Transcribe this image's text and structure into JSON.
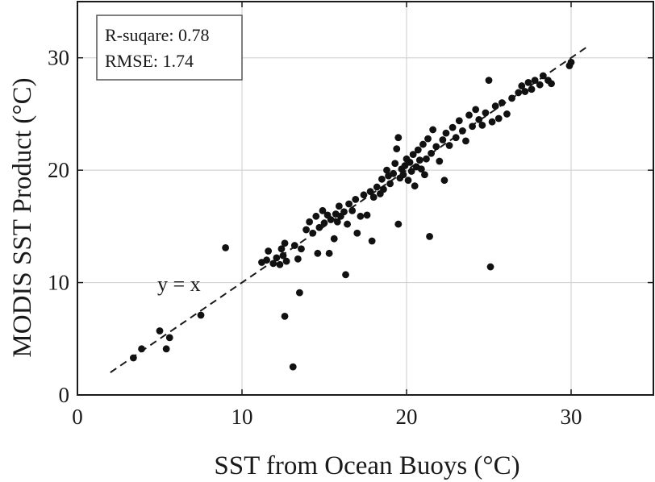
{
  "chart_data": {
    "type": "scatter",
    "xlabel": "SST from Ocean Buoys (°C)",
    "ylabel": "MODIS SST Product (°C)",
    "xlim": [
      0,
      35
    ],
    "ylim": [
      0,
      35
    ],
    "x_ticks": [
      0,
      10,
      20,
      30
    ],
    "y_ticks": [
      0,
      10,
      20,
      30
    ],
    "grid": true,
    "stats": {
      "r_squared_label": "R-suqare: 0.78",
      "rmse_label": "RMSE: 1.74"
    },
    "reference_line": {
      "label": "y = x",
      "x": [
        2,
        31
      ],
      "y": [
        2,
        31
      ]
    },
    "series": [
      {
        "points": [
          [
            3.4,
            3.3
          ],
          [
            3.9,
            4.1
          ],
          [
            5.0,
            5.7
          ],
          [
            5.4,
            4.1
          ],
          [
            5.6,
            5.1
          ],
          [
            7.5,
            7.1
          ],
          [
            9.0,
            13.1
          ],
          [
            11.2,
            11.8
          ],
          [
            11.5,
            12.0
          ],
          [
            11.6,
            12.8
          ],
          [
            11.9,
            11.7
          ],
          [
            12.1,
            12.2
          ],
          [
            12.3,
            11.6
          ],
          [
            12.4,
            13.0
          ],
          [
            12.5,
            12.4
          ],
          [
            12.6,
            13.5
          ],
          [
            12.7,
            11.9
          ],
          [
            12.6,
            7.0
          ],
          [
            13.1,
            2.5
          ],
          [
            13.2,
            13.3
          ],
          [
            13.4,
            12.1
          ],
          [
            13.5,
            9.1
          ],
          [
            13.6,
            13.0
          ],
          [
            13.9,
            14.7
          ],
          [
            14.1,
            15.4
          ],
          [
            14.3,
            14.4
          ],
          [
            14.5,
            15.9
          ],
          [
            14.6,
            12.6
          ],
          [
            14.7,
            14.9
          ],
          [
            14.9,
            16.4
          ],
          [
            15.0,
            15.3
          ],
          [
            15.2,
            16.0
          ],
          [
            15.3,
            12.6
          ],
          [
            15.4,
            15.6
          ],
          [
            15.6,
            13.9
          ],
          [
            15.7,
            16.1
          ],
          [
            15.8,
            15.4
          ],
          [
            15.9,
            16.8
          ],
          [
            16.0,
            15.9
          ],
          [
            16.2,
            16.3
          ],
          [
            16.3,
            10.7
          ],
          [
            16.4,
            15.2
          ],
          [
            16.5,
            17.0
          ],
          [
            16.7,
            16.4
          ],
          [
            16.9,
            17.4
          ],
          [
            17.0,
            14.4
          ],
          [
            17.2,
            15.9
          ],
          [
            17.4,
            17.8
          ],
          [
            17.6,
            16.0
          ],
          [
            17.8,
            18.1
          ],
          [
            17.9,
            13.7
          ],
          [
            18.0,
            17.6
          ],
          [
            18.2,
            18.5
          ],
          [
            18.4,
            17.9
          ],
          [
            18.5,
            19.2
          ],
          [
            18.6,
            18.3
          ],
          [
            18.8,
            20.0
          ],
          [
            18.9,
            19.5
          ],
          [
            19.0,
            18.8
          ],
          [
            19.2,
            19.7
          ],
          [
            19.3,
            20.6
          ],
          [
            19.4,
            21.9
          ],
          [
            19.5,
            15.2
          ],
          [
            19.5,
            22.9
          ],
          [
            19.6,
            19.3
          ],
          [
            19.7,
            20.1
          ],
          [
            19.8,
            19.6
          ],
          [
            19.9,
            20.4
          ],
          [
            20.0,
            21.0
          ],
          [
            20.1,
            19.1
          ],
          [
            20.2,
            20.7
          ],
          [
            20.3,
            19.9
          ],
          [
            20.4,
            21.4
          ],
          [
            20.5,
            18.6
          ],
          [
            20.6,
            20.3
          ],
          [
            20.7,
            21.8
          ],
          [
            20.8,
            20.9
          ],
          [
            20.9,
            20.1
          ],
          [
            21.0,
            22.3
          ],
          [
            21.1,
            19.6
          ],
          [
            21.2,
            21.0
          ],
          [
            21.3,
            22.8
          ],
          [
            21.4,
            14.1
          ],
          [
            21.5,
            21.5
          ],
          [
            21.6,
            23.6
          ],
          [
            21.8,
            22.1
          ],
          [
            22.0,
            20.8
          ],
          [
            22.2,
            22.7
          ],
          [
            22.3,
            19.1
          ],
          [
            22.4,
            23.3
          ],
          [
            22.6,
            22.2
          ],
          [
            22.8,
            23.8
          ],
          [
            23.0,
            22.9
          ],
          [
            23.2,
            24.4
          ],
          [
            23.4,
            23.5
          ],
          [
            23.6,
            22.6
          ],
          [
            23.8,
            24.9
          ],
          [
            24.0,
            23.9
          ],
          [
            24.2,
            25.4
          ],
          [
            24.4,
            24.5
          ],
          [
            24.6,
            24.0
          ],
          [
            24.8,
            25.1
          ],
          [
            25.0,
            28.0
          ],
          [
            25.1,
            11.4
          ],
          [
            25.2,
            24.3
          ],
          [
            25.4,
            25.7
          ],
          [
            25.6,
            24.6
          ],
          [
            25.8,
            26.0
          ],
          [
            26.1,
            25.0
          ],
          [
            26.4,
            26.4
          ],
          [
            26.8,
            26.9
          ],
          [
            27.0,
            27.5
          ],
          [
            27.2,
            27.0
          ],
          [
            27.4,
            27.8
          ],
          [
            27.6,
            27.2
          ],
          [
            27.8,
            28.0
          ],
          [
            28.1,
            27.6
          ],
          [
            28.3,
            28.4
          ],
          [
            28.6,
            28.0
          ],
          [
            28.8,
            27.7
          ],
          [
            29.9,
            29.3
          ],
          [
            30.0,
            29.6
          ]
        ]
      }
    ]
  }
}
